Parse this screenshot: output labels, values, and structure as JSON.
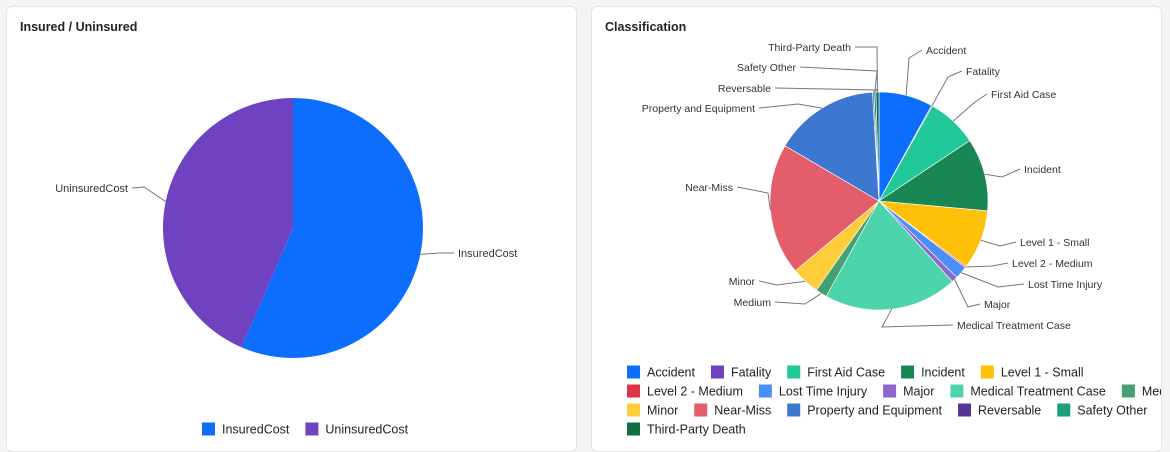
{
  "insured_card": {
    "title": "Insured / Uninsured"
  },
  "classification_card": {
    "title": "Classification"
  },
  "chart_data": [
    {
      "type": "pie",
      "title": "Insured / Uninsured",
      "categories": [
        "InsuredCost",
        "UninsuredCost"
      ],
      "values": [
        56.5,
        43.5
      ],
      "colors": [
        "#0d6efd",
        "#6f42c1"
      ],
      "legend": "bottom"
    },
    {
      "type": "pie",
      "title": "Classification",
      "categories": [
        "Accident",
        "Fatality",
        "First Aid Case",
        "Incident",
        "Level 1 - Small",
        "Level 2 - Medium",
        "Lost Time Injury",
        "Major",
        "Medical Treatment Case",
        "Medium",
        "Minor",
        "Near-Miss",
        "Property and Equipment",
        "Reversable",
        "Safety Other",
        "Third-Party Death"
      ],
      "values": [
        8.0,
        0.15,
        7.5,
        10.8,
        8.8,
        0.2,
        1.9,
        0.9,
        19.8,
        1.7,
        4.2,
        19.5,
        15.6,
        0.2,
        0.3,
        0.45
      ],
      "colors": [
        "#0d6efd",
        "#6f42c1",
        "#20c997",
        "#198754",
        "#ffc107",
        "#dc3545",
        "#4c8ef7",
        "#8c68cd",
        "#4dd4ac",
        "#479f76",
        "#ffcd39",
        "#e35d6a",
        "#3d78d0",
        "#5a3494",
        "#1a9f78",
        "#146c43"
      ],
      "legend": "bottom"
    }
  ]
}
